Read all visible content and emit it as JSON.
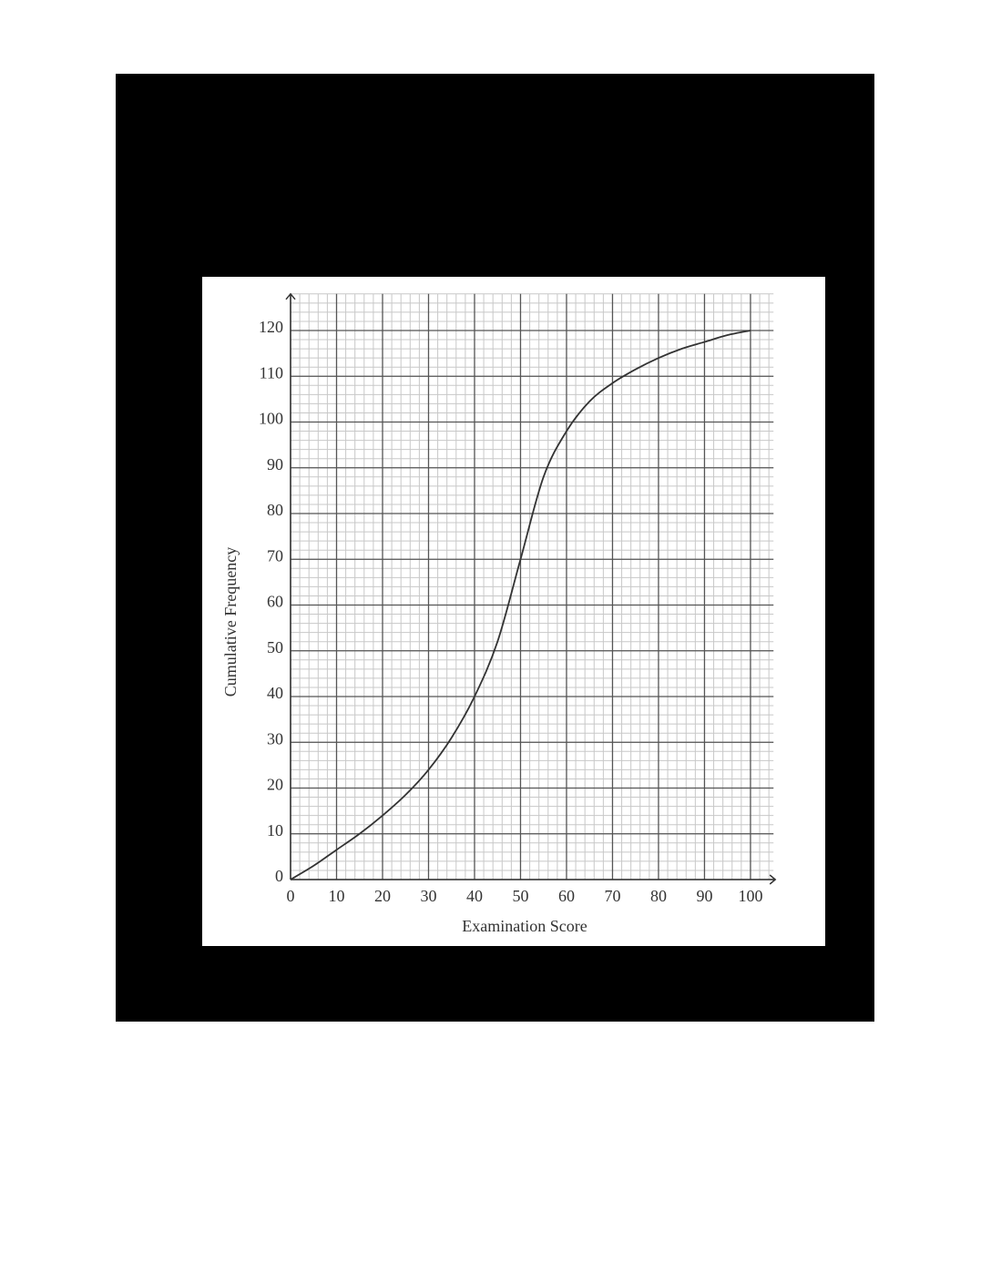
{
  "chart_data": {
    "type": "line",
    "x_label": "Examination Score",
    "y_label": "Cumulative Frequency",
    "x": [
      0,
      5,
      10,
      15,
      20,
      25,
      30,
      35,
      40,
      45,
      50,
      55,
      60,
      65,
      70,
      75,
      80,
      85,
      90,
      95,
      100
    ],
    "series": [
      {
        "name": "Cumulative Frequency",
        "color": "#333333",
        "values": [
          0,
          3,
          6.5,
          10,
          14,
          18.5,
          24,
          31,
          40,
          52,
          70,
          88,
          98,
          104.5,
          108.5,
          111.5,
          114,
          116,
          117.5,
          119,
          120
        ]
      }
    ],
    "xlim": [
      0,
      105
    ],
    "ylim": [
      0,
      128
    ],
    "xticks": [
      0,
      10,
      20,
      30,
      40,
      50,
      60,
      70,
      80,
      90,
      100
    ],
    "yticks": [
      0,
      10,
      20,
      30,
      40,
      50,
      60,
      70,
      80,
      90,
      100,
      110,
      120
    ],
    "grid": true,
    "minor_grid": true
  }
}
